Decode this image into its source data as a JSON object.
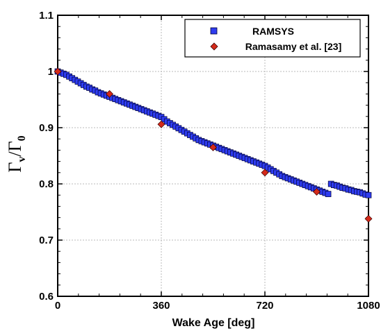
{
  "chart_data": {
    "type": "scatter",
    "xlabel": "Wake Age [deg]",
    "ylabel": {
      "main1": "Γ",
      "sub1": "v",
      "slash": "/",
      "main2": "Γ",
      "sub2": "0"
    },
    "xlim": [
      0,
      1080
    ],
    "ylim": [
      0.6,
      1.1
    ],
    "xticks": [
      "0",
      "360",
      "720",
      "1080"
    ],
    "xtick_values": [
      0,
      360,
      720,
      1080
    ],
    "yticks": [
      "0.6",
      "0.7",
      "0.8",
      "0.9",
      "1",
      "1.1"
    ],
    "ytick_values": [
      0.6,
      0.7,
      0.8,
      0.9,
      1.0,
      1.1
    ],
    "grid": true,
    "legend_position": "top-right",
    "series": [
      {
        "name": "RAMSYS",
        "marker": "square",
        "color": "#2e3cf0",
        "edge_color": "#000033",
        "x": [
          0,
          10,
          20,
          30,
          40,
          50,
          60,
          70,
          80,
          90,
          100,
          110,
          120,
          130,
          140,
          150,
          160,
          170,
          180,
          190,
          200,
          210,
          220,
          230,
          240,
          250,
          260,
          270,
          280,
          290,
          300,
          310,
          320,
          330,
          340,
          350,
          360,
          370,
          380,
          390,
          400,
          410,
          420,
          430,
          440,
          450,
          460,
          470,
          480,
          490,
          500,
          510,
          520,
          530,
          540,
          550,
          560,
          570,
          580,
          590,
          600,
          610,
          620,
          630,
          640,
          650,
          660,
          670,
          680,
          690,
          700,
          710,
          720,
          730,
          740,
          750,
          760,
          770,
          780,
          790,
          800,
          810,
          820,
          830,
          840,
          850,
          860,
          870,
          880,
          890,
          900,
          910,
          920,
          930,
          940,
          950,
          960,
          970,
          980,
          990,
          1000,
          1010,
          1020,
          1030,
          1040,
          1050,
          1060,
          1070,
          1080
        ],
        "y": [
          1.0,
          0.998,
          0.996,
          0.994,
          0.991,
          0.988,
          0.985,
          0.982,
          0.979,
          0.976,
          0.973,
          0.971,
          0.968,
          0.966,
          0.963,
          0.961,
          0.959,
          0.957,
          0.955,
          0.953,
          0.951,
          0.949,
          0.947,
          0.945,
          0.943,
          0.941,
          0.939,
          0.937,
          0.935,
          0.933,
          0.931,
          0.929,
          0.927,
          0.925,
          0.923,
          0.921,
          0.919,
          0.915,
          0.911,
          0.908,
          0.905,
          0.902,
          0.899,
          0.896,
          0.893,
          0.89,
          0.887,
          0.884,
          0.881,
          0.878,
          0.876,
          0.874,
          0.872,
          0.87,
          0.868,
          0.866,
          0.864,
          0.862,
          0.86,
          0.858,
          0.856,
          0.854,
          0.852,
          0.85,
          0.848,
          0.846,
          0.844,
          0.842,
          0.84,
          0.838,
          0.836,
          0.834,
          0.832,
          0.829,
          0.826,
          0.823,
          0.82,
          0.817,
          0.814,
          0.812,
          0.81,
          0.808,
          0.806,
          0.804,
          0.802,
          0.8,
          0.798,
          0.796,
          0.794,
          0.792,
          0.79,
          0.788,
          0.786,
          0.784,
          0.782,
          0.8,
          0.798,
          0.797,
          0.795,
          0.793,
          0.792,
          0.79,
          0.789,
          0.787,
          0.786,
          0.785,
          0.783,
          0.781,
          0.78
        ]
      },
      {
        "name": "Ramasamy et al. [23]",
        "marker": "diamond",
        "color": "#d42a1a",
        "edge_color": "#3a0000",
        "x": [
          0,
          180,
          360,
          540,
          720,
          900,
          1080
        ],
        "y": [
          1.0,
          0.96,
          0.906,
          0.865,
          0.82,
          0.786,
          0.738
        ]
      }
    ]
  }
}
